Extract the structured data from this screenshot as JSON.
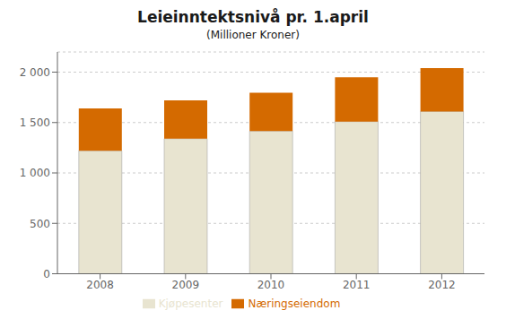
{
  "chart_data": {
    "type": "bar",
    "title": "Leieinntektsnivå pr. 1.april",
    "subtitle": "(Millioner Kroner)",
    "categories": [
      "2008",
      "2009",
      "2010",
      "2011",
      "2012"
    ],
    "series": [
      {
        "name": "Kjøpesenter",
        "color": "#E8E4D0",
        "values": [
          1220,
          1340,
          1415,
          1510,
          1610
        ]
      },
      {
        "name": "Næringseiendom",
        "color": "#D46A00",
        "values": [
          420,
          380,
          380,
          440,
          430
        ]
      }
    ],
    "stacked": true,
    "ylim": [
      0,
      2200
    ],
    "yticks": [
      0,
      500,
      {
        "value": 1000,
        "label": "1 000"
      },
      {
        "value": 1500,
        "label": "1 500"
      },
      {
        "value": 2000,
        "label": "2 000"
      }
    ],
    "grid": true,
    "legend": "bottom"
  }
}
